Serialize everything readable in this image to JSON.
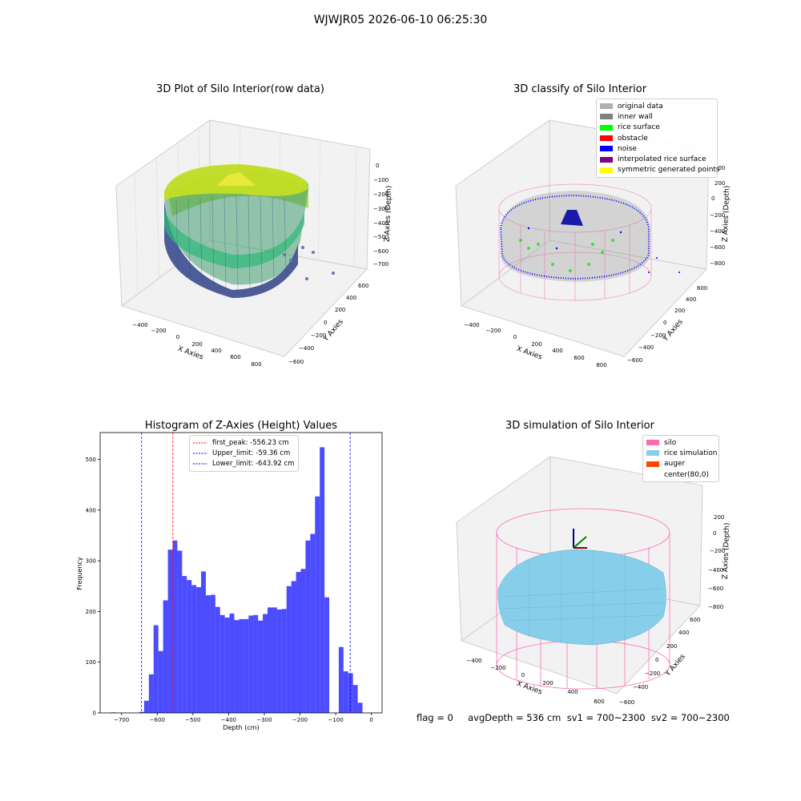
{
  "figure": {
    "suptitle": "WJWJR05 2026-06-10 06:25:30",
    "footer": "flag = 0     avgDepth = 536 cm  sv1 = 700~2300  sv2 = 700~2300"
  },
  "panels": {
    "raw": {
      "title": "3D Plot of Silo Interior(row data)",
      "xlabel": "X Axies",
      "ylabel": "Y Axies",
      "zlabel": "Z Axies (Depth)",
      "xticks": [
        "−400",
        "−200",
        "0",
        "200",
        "400",
        "600",
        "800"
      ],
      "yticks": [
        "−600",
        "−400",
        "−200",
        "0",
        "200",
        "400",
        "600"
      ],
      "zticks": [
        "0",
        "−100",
        "−200",
        "−300",
        "−400",
        "−500",
        "−600",
        "−700"
      ]
    },
    "classify": {
      "title": "3D classify of Silo Interior",
      "xlabel": "X Axies",
      "ylabel": "Y Axies",
      "zlabel": "Z Axies (Depth)",
      "xticks": [
        "−400",
        "−200",
        "0",
        "200",
        "400",
        "600",
        "800"
      ],
      "yticks": [
        "−600",
        "−400",
        "−200",
        "0",
        "200",
        "400",
        "600"
      ],
      "zticks": [
        "200",
        "0",
        "−200",
        "−400",
        "−600",
        "−800"
      ],
      "legend": [
        {
          "label": "original data",
          "color": "#b0b0b0"
        },
        {
          "label": "inner wall",
          "color": "#808080"
        },
        {
          "label": "rice surface",
          "color": "#00ff00"
        },
        {
          "label": "obstacle",
          "color": "#ff0000"
        },
        {
          "label": "noise",
          "color": "#0000ff"
        },
        {
          "label": "interpolated rice surface",
          "color": "#800080"
        },
        {
          "label": "symmetric generated points",
          "color": "#ffff00"
        }
      ]
    },
    "simulation": {
      "title": "3D simulation of Silo Interior",
      "xlabel": "X Axies",
      "ylabel": "Y Axies",
      "zlabel": "Z Axies (Depth)",
      "xticks": [
        "−400",
        "−200",
        "0",
        "200",
        "400",
        "600"
      ],
      "yticks": [
        "−600",
        "−400",
        "−200",
        "0",
        "200",
        "400",
        "600"
      ],
      "zticks": [
        "200",
        "0",
        "−200",
        "−400",
        "−600",
        "−800"
      ],
      "legend": [
        {
          "label": "silo",
          "color": "#ff69b4"
        },
        {
          "label": "rice simulation",
          "color": "#87ceeb"
        },
        {
          "label": "auger",
          "color": "#ff4500"
        },
        {
          "label": "center(80,0)",
          "color": "transparent"
        }
      ]
    }
  },
  "chart_data": {
    "type": "bar",
    "title": "Histogram of Z-Axies (Height) Values",
    "xlabel": "Depth (cm)",
    "ylabel": "Frequency",
    "xlim": [
      -760,
      30
    ],
    "ylim": [
      0,
      553
    ],
    "bin_width": 13.3,
    "bin_starts": [
      -730,
      -650,
      -636.7,
      -623.4,
      -610.1,
      -596.8,
      -583.5,
      -570.2,
      -556.9,
      -543.6,
      -530.3,
      -517,
      -503.7,
      -490.4,
      -477.1,
      -463.8,
      -450.5,
      -437.2,
      -423.9,
      -410.6,
      -397.3,
      -384,
      -370.7,
      -357.4,
      -344.1,
      -330.8,
      -317.5,
      -304.2,
      -290.9,
      -277.6,
      -264.3,
      -251,
      -237.7,
      -224.4,
      -211.1,
      -197.8,
      -184.5,
      -171.2,
      -157.9,
      -144.6,
      -131.3,
      -118,
      -104.7,
      -91.4,
      -78.1,
      -64.8,
      -51.5,
      -38.2,
      -24.9,
      -11.6
    ],
    "values": [
      1,
      2,
      24,
      76,
      173,
      122,
      222,
      322,
      340,
      320,
      270,
      262,
      252,
      248,
      279,
      232,
      233,
      209,
      193,
      188,
      196,
      183,
      185,
      185,
      192,
      193,
      182,
      195,
      208,
      208,
      204,
      205,
      250,
      260,
      278,
      284,
      340,
      353,
      427,
      524,
      228,
      0,
      0,
      130,
      82,
      78,
      55,
      20,
      0,
      0
    ],
    "color": "#0000ff",
    "xticks": [
      "−700",
      "−600",
      "−500",
      "−400",
      "−300",
      "−200",
      "−100",
      "0"
    ],
    "yticks": [
      "0",
      "100",
      "200",
      "300",
      "400",
      "500"
    ],
    "lines": [
      {
        "label": "first_peak: -556.23 cm",
        "x": -556.23,
        "color": "#ff0000"
      },
      {
        "label": "Upper_limit: -59.36 cm",
        "x": -59.36,
        "color": "#0000ff"
      },
      {
        "label": "Lower_limit: -643.92 cm",
        "x": -643.92,
        "color": "#0000ff"
      }
    ]
  }
}
